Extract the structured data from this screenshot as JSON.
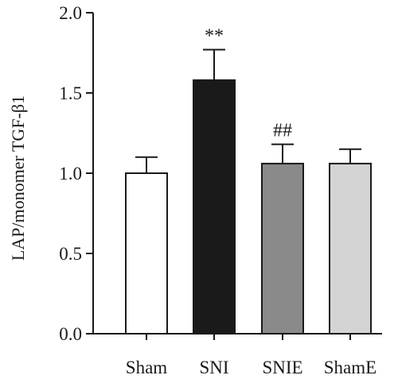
{
  "chart_data": {
    "type": "bar",
    "title": "",
    "xlabel": "",
    "ylabel": "LAP/monomer TGF-β1",
    "ylim": [
      0.0,
      2.0
    ],
    "yticks": [
      "0.0",
      "0.5",
      "1.0",
      "1.5",
      "2.0"
    ],
    "grid": false,
    "categories": [
      "Sham",
      "SNI",
      "SNIE",
      "ShamE"
    ],
    "values": [
      1.0,
      1.58,
      1.06,
      1.06
    ],
    "errors": [
      0.1,
      0.19,
      0.12,
      0.09
    ],
    "colors": [
      "#ffffff",
      "#1a1a1a",
      "#8a8a8a",
      "#d4d4d4"
    ],
    "annotations": [
      "",
      "**",
      "##",
      ""
    ]
  }
}
